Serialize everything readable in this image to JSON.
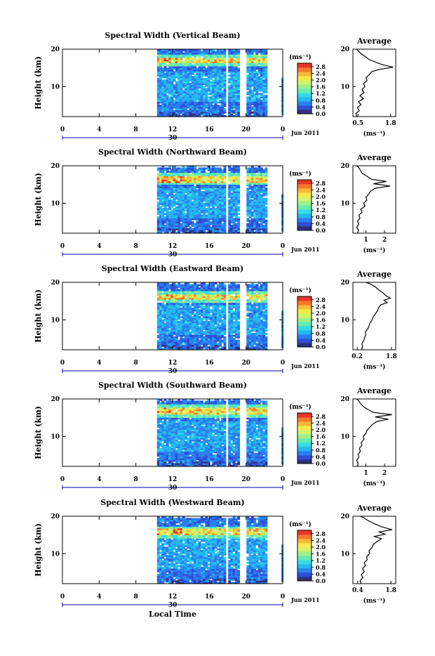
{
  "chart_data": {
    "type": "heatmap",
    "x_axis": {
      "label": "Local Time",
      "range": [
        0,
        24
      ],
      "ticks": [
        "0",
        "4",
        "8",
        "12",
        "16",
        "20",
        "0"
      ],
      "date_label": "30",
      "month_label": "Jun 2011"
    },
    "y_axis": {
      "label": "Height (km)",
      "range": [
        2,
        20
      ],
      "ticks": [
        "20",
        "10"
      ]
    },
    "colorbar": {
      "unit": "(ms⁻¹)",
      "range": [
        0,
        3.0
      ],
      "ticks": [
        "2.8",
        "2.4",
        "2.0",
        "1.6",
        "1.2",
        "0.8",
        "0.4",
        "0.0"
      ],
      "colors": [
        "#30307a",
        "#2f4fd6",
        "#2a80f0",
        "#25b8f0",
        "#38dce0",
        "#66ecb0",
        "#9df08a",
        "#d2f36a",
        "#f5e94a",
        "#f8b838",
        "#f57a2a",
        "#e8342a"
      ]
    },
    "data_coverage": {
      "start_hour": 10.3,
      "gaps_hours": [
        [
          17.6,
          17.9
        ],
        [
          19.2,
          19.9
        ],
        [
          22.3,
          23.7
        ]
      ],
      "final_column_hour": 23.85
    },
    "panels": [
      {
        "title": "Spectral Width (Vertical Beam)",
        "average_title": "Average",
        "average_xlabel": "(ms⁻¹)",
        "average_xticks": [
          "0.5",
          "1.8"
        ],
        "average_xrange": [
          0.3,
          2.0
        ],
        "average_profile": [
          {
            "h": 2.0,
            "v": 0.45
          },
          {
            "h": 2.8,
            "v": 0.42
          },
          {
            "h": 3.6,
            "v": 0.55
          },
          {
            "h": 4.4,
            "v": 0.48
          },
          {
            "h": 5.2,
            "v": 0.62
          },
          {
            "h": 6.0,
            "v": 0.52
          },
          {
            "h": 6.8,
            "v": 0.72
          },
          {
            "h": 7.6,
            "v": 0.58
          },
          {
            "h": 8.4,
            "v": 0.74
          },
          {
            "h": 9.2,
            "v": 0.66
          },
          {
            "h": 10.0,
            "v": 0.78
          },
          {
            "h": 10.8,
            "v": 0.72
          },
          {
            "h": 11.6,
            "v": 0.86
          },
          {
            "h": 12.4,
            "v": 0.82
          },
          {
            "h": 13.2,
            "v": 0.95
          },
          {
            "h": 14.0,
            "v": 1.05
          },
          {
            "h": 14.6,
            "v": 1.35
          },
          {
            "h": 15.2,
            "v": 1.9
          },
          {
            "h": 15.8,
            "v": 1.5
          },
          {
            "h": 16.4,
            "v": 1.25
          },
          {
            "h": 17.2,
            "v": 0.95
          },
          {
            "h": 18.0,
            "v": 0.8
          },
          {
            "h": 18.8,
            "v": 0.62
          },
          {
            "h": 19.6,
            "v": 0.5
          },
          {
            "h": 20.0,
            "v": 0.45
          }
        ]
      },
      {
        "title": "Spectral Width (Northward Beam)",
        "average_title": "Average",
        "average_xlabel": "(ms⁻¹)",
        "average_xticks": [
          "1",
          "2"
        ],
        "average_xrange": [
          0.3,
          2.6
        ],
        "average_profile": [
          {
            "h": 2.0,
            "v": 0.55
          },
          {
            "h": 2.8,
            "v": 0.6
          },
          {
            "h": 3.6,
            "v": 0.5
          },
          {
            "h": 4.4,
            "v": 0.62
          },
          {
            "h": 5.2,
            "v": 0.55
          },
          {
            "h": 6.0,
            "v": 0.68
          },
          {
            "h": 6.8,
            "v": 0.62
          },
          {
            "h": 7.6,
            "v": 0.8
          },
          {
            "h": 8.4,
            "v": 0.72
          },
          {
            "h": 9.2,
            "v": 0.95
          },
          {
            "h": 10.0,
            "v": 0.88
          },
          {
            "h": 10.8,
            "v": 1.05
          },
          {
            "h": 11.6,
            "v": 1.0
          },
          {
            "h": 12.4,
            "v": 1.15
          },
          {
            "h": 13.2,
            "v": 1.25
          },
          {
            "h": 14.0,
            "v": 1.5
          },
          {
            "h": 14.6,
            "v": 2.3
          },
          {
            "h": 15.2,
            "v": 1.4
          },
          {
            "h": 15.8,
            "v": 2.1
          },
          {
            "h": 16.4,
            "v": 1.3
          },
          {
            "h": 17.2,
            "v": 1.05
          },
          {
            "h": 18.0,
            "v": 0.8
          },
          {
            "h": 18.8,
            "v": 0.7
          },
          {
            "h": 19.6,
            "v": 0.6
          },
          {
            "h": 20.0,
            "v": 0.5
          }
        ]
      },
      {
        "title": "Spectral Width (Eastward Beam)",
        "average_title": "Average",
        "average_xlabel": "(ms⁻¹)",
        "average_xticks": [
          "0.2",
          "1.8"
        ],
        "average_xrange": [
          0.0,
          2.0
        ],
        "average_profile": [
          {
            "h": 2.0,
            "v": 0.4
          },
          {
            "h": 2.8,
            "v": 0.45
          },
          {
            "h": 3.6,
            "v": 0.42
          },
          {
            "h": 4.4,
            "v": 0.5
          },
          {
            "h": 5.2,
            "v": 0.55
          },
          {
            "h": 6.0,
            "v": 0.6
          },
          {
            "h": 6.8,
            "v": 0.58
          },
          {
            "h": 7.6,
            "v": 0.7
          },
          {
            "h": 8.4,
            "v": 0.75
          },
          {
            "h": 9.2,
            "v": 0.8
          },
          {
            "h": 10.0,
            "v": 0.9
          },
          {
            "h": 10.8,
            "v": 0.95
          },
          {
            "h": 11.6,
            "v": 1.05
          },
          {
            "h": 12.4,
            "v": 1.15
          },
          {
            "h": 13.2,
            "v": 1.2
          },
          {
            "h": 14.0,
            "v": 1.3
          },
          {
            "h": 14.6,
            "v": 1.6
          },
          {
            "h": 15.2,
            "v": 1.45
          },
          {
            "h": 15.8,
            "v": 1.75
          },
          {
            "h": 16.4,
            "v": 1.55
          },
          {
            "h": 17.2,
            "v": 1.4
          },
          {
            "h": 18.0,
            "v": 1.2
          },
          {
            "h": 18.8,
            "v": 1.05
          },
          {
            "h": 19.6,
            "v": 0.8
          },
          {
            "h": 20.0,
            "v": 0.6
          }
        ]
      },
      {
        "title": "Spectral Width (Southward Beam)",
        "average_title": "Average",
        "average_xlabel": "(ms⁻¹)",
        "average_xticks": [
          "1",
          "2"
        ],
        "average_xrange": [
          0.3,
          2.6
        ],
        "average_profile": [
          {
            "h": 2.0,
            "v": 0.55
          },
          {
            "h": 2.8,
            "v": 0.58
          },
          {
            "h": 3.6,
            "v": 0.5
          },
          {
            "h": 4.4,
            "v": 0.62
          },
          {
            "h": 5.2,
            "v": 0.58
          },
          {
            "h": 6.0,
            "v": 0.7
          },
          {
            "h": 6.8,
            "v": 0.65
          },
          {
            "h": 7.6,
            "v": 0.78
          },
          {
            "h": 8.4,
            "v": 0.75
          },
          {
            "h": 9.2,
            "v": 0.9
          },
          {
            "h": 10.0,
            "v": 0.85
          },
          {
            "h": 10.8,
            "v": 1.0
          },
          {
            "h": 11.6,
            "v": 1.05
          },
          {
            "h": 12.4,
            "v": 1.2
          },
          {
            "h": 13.2,
            "v": 1.35
          },
          {
            "h": 14.0,
            "v": 1.6
          },
          {
            "h": 14.6,
            "v": 2.2
          },
          {
            "h": 15.2,
            "v": 1.5
          },
          {
            "h": 15.8,
            "v": 2.4
          },
          {
            "h": 16.4,
            "v": 1.4
          },
          {
            "h": 17.2,
            "v": 1.1
          },
          {
            "h": 18.0,
            "v": 0.85
          },
          {
            "h": 18.8,
            "v": 0.7
          },
          {
            "h": 19.6,
            "v": 0.6
          },
          {
            "h": 20.0,
            "v": 0.5
          }
        ]
      },
      {
        "title": "Spectral Width (Westward Beam)",
        "average_title": "Average",
        "average_xlabel": "(ms⁻¹)",
        "average_xticks": [
          "0.4",
          "1.8"
        ],
        "average_xrange": [
          0.2,
          2.0
        ],
        "average_profile": [
          {
            "h": 2.0,
            "v": 0.55
          },
          {
            "h": 2.8,
            "v": 0.5
          },
          {
            "h": 3.6,
            "v": 0.62
          },
          {
            "h": 4.4,
            "v": 0.55
          },
          {
            "h": 5.2,
            "v": 0.68
          },
          {
            "h": 6.0,
            "v": 0.6
          },
          {
            "h": 6.8,
            "v": 0.72
          },
          {
            "h": 7.6,
            "v": 0.68
          },
          {
            "h": 8.4,
            "v": 0.8
          },
          {
            "h": 9.2,
            "v": 0.78
          },
          {
            "h": 10.0,
            "v": 0.9
          },
          {
            "h": 10.8,
            "v": 0.88
          },
          {
            "h": 11.6,
            "v": 1.0
          },
          {
            "h": 12.4,
            "v": 1.05
          },
          {
            "h": 13.2,
            "v": 1.2
          },
          {
            "h": 14.0,
            "v": 1.4
          },
          {
            "h": 14.6,
            "v": 1.1
          },
          {
            "h": 15.2,
            "v": 1.55
          },
          {
            "h": 15.8,
            "v": 1.3
          },
          {
            "h": 16.4,
            "v": 1.85
          },
          {
            "h": 17.2,
            "v": 1.4
          },
          {
            "h": 18.0,
            "v": 1.1
          },
          {
            "h": 18.8,
            "v": 0.85
          },
          {
            "h": 19.6,
            "v": 0.65
          },
          {
            "h": 20.0,
            "v": 0.5
          }
        ]
      }
    ]
  }
}
